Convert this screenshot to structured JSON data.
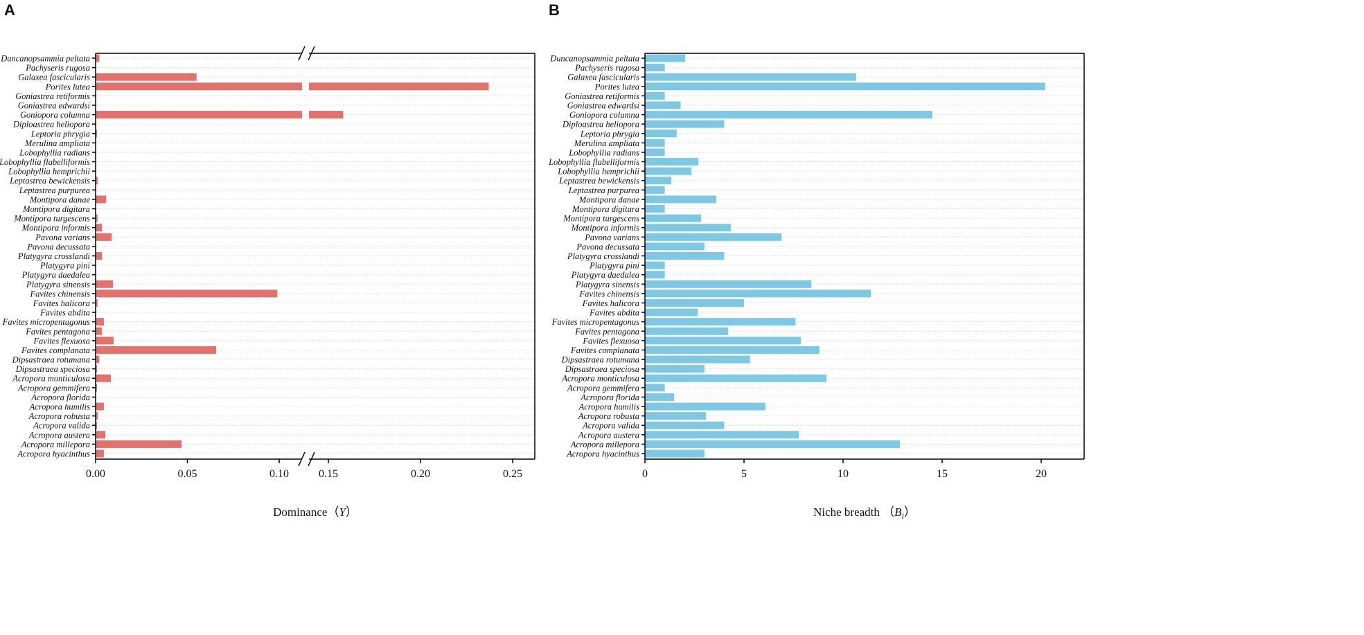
{
  "chart_data": [
    {
      "type": "bar",
      "orientation": "horizontal",
      "panel_label": "A",
      "xlabel": "Dominance（",
      "xlabel_symbol": "Y",
      "xlabel_sub": "",
      "xlabel_close": "）",
      "xlim": [
        0,
        0.26
      ],
      "axis_break": [
        0.1125,
        0.139
      ],
      "xticks": [
        "0.00",
        "0.05",
        "0.10",
        "0.15",
        "0.20",
        "0.25"
      ],
      "xtick_values": [
        0,
        0.05,
        0.1,
        0.15,
        0.2,
        0.25
      ],
      "color": "#E3716E",
      "grid": "horizontal dotted",
      "categories": [
        "Duncanopsammia peltata",
        "Pachyseris rugosa",
        "Galaxea fascicularis",
        "Porites lutea",
        "Goniastrea retiformis",
        "Goniastrea edwardsi",
        "Goniopora columna",
        "Diploastrea heliopora",
        "Leptoria phrygia",
        "Merulina ampliata",
        "Lobophyllia radians",
        "Lobophyllia flabelliformis",
        "Lobophyllia hemprichii",
        "Leptastrea bewickensis",
        "Leptastrea purpurea",
        "Montipora danae",
        "Montipora digitara",
        "Montipora turgescens",
        "Montipora informis",
        "Pavona varians",
        "Pavona decussata",
        "Platygyra crosslandi",
        "Platygyra pini",
        "Platygyra daedalea",
        "Platygyra sinensis",
        "Favites chinensis",
        "Favites halicora",
        "Favites abdita",
        "Favites micropentagonus",
        "Favites pentagona",
        "Favites flexuosa",
        "Favites complanata",
        "Dipsastraea rotumana",
        "Dipsastraea speciosa",
        "Acropora monticulosa",
        "Acropora gemmifera",
        "Acropora florida",
        "Acropora humilis",
        "Acropora robusta",
        "Acropora valida",
        "Acropora austera",
        "Acropora millepora",
        "Acropora hyacinthus"
      ],
      "values": [
        0.002,
        0.0002,
        0.055,
        0.237,
        0.0002,
        0.0002,
        0.158,
        0.0003,
        0.0008,
        0.0002,
        0.0002,
        0.0002,
        0.0002,
        0.0011,
        0.0002,
        0.0057,
        0.0002,
        0.001,
        0.0034,
        0.0087,
        0.0003,
        0.0034,
        0.0002,
        0.0002,
        0.0094,
        0.099,
        0.001,
        0.0003,
        0.0045,
        0.0034,
        0.0098,
        0.0657,
        0.0019,
        0.0008,
        0.0083,
        0.0008,
        0.0002,
        0.0045,
        0.0011,
        0.0008,
        0.0053,
        0.0468,
        0.0045
      ]
    },
    {
      "type": "bar",
      "orientation": "horizontal",
      "panel_label": "B",
      "xlabel": "Niche breadth （",
      "xlabel_symbol": "B",
      "xlabel_sub": "i",
      "xlabel_close": "）",
      "xlim": [
        0,
        22.2
      ],
      "xticks": [
        "0",
        "5",
        "10",
        "15",
        "20"
      ],
      "xtick_values": [
        0,
        5,
        10,
        15,
        20
      ],
      "color": "#7EC8E3",
      "grid": "horizontal dotted",
      "categories": [
        "Duncanopsammia peltata",
        "Pachyseris rugosa",
        "Galaxea fascicularis",
        "Porites lutea",
        "Goniastrea retiformis",
        "Goniastrea edwardsi",
        "Goniopora columna",
        "Diploastrea heliopora",
        "Leptoria phrygia",
        "Merulina ampliata",
        "Lobophyllia radians",
        "Lobophyllia flabelliformis",
        "Lobophyllia hemprichii",
        "Leptastrea bewickensis",
        "Leptastrea purpurea",
        "Montipora danae",
        "Montipora digitara",
        "Montipora turgescens",
        "Montipora informis",
        "Pavona varians",
        "Pavona decussata",
        "Platygyra crosslandi",
        "Platygyra pini",
        "Platygyra daedalea",
        "Platygyra sinensis",
        "Favites chinensis",
        "Favites halicora",
        "Favites abdita",
        "Favites micropentagonus",
        "Favites pentagona",
        "Favites flexuosa",
        "Favites complanata",
        "Dipsastraea rotumana",
        "Dipsastraea speciosa",
        "Acropora monticulosa",
        "Acropora gemmifera",
        "Acropora florida",
        "Acropora humilis",
        "Acropora robusta",
        "Acropora valida",
        "Acropora austera",
        "Acropora millepora",
        "Acropora hyacinthus"
      ],
      "values": [
        2.03,
        1.0,
        10.66,
        20.2,
        1.0,
        1.8,
        14.5,
        4.0,
        1.6,
        1.0,
        1.0,
        2.7,
        2.35,
        1.33,
        1.0,
        3.6,
        1.0,
        2.83,
        4.33,
        6.9,
        3.0,
        4.0,
        1.0,
        1.0,
        8.4,
        11.4,
        5.0,
        2.66,
        7.6,
        4.2,
        7.87,
        8.8,
        5.3,
        3.0,
        9.16,
        1.0,
        1.47,
        6.08,
        3.08,
        4.0,
        7.76,
        12.87,
        3.0
      ]
    }
  ]
}
